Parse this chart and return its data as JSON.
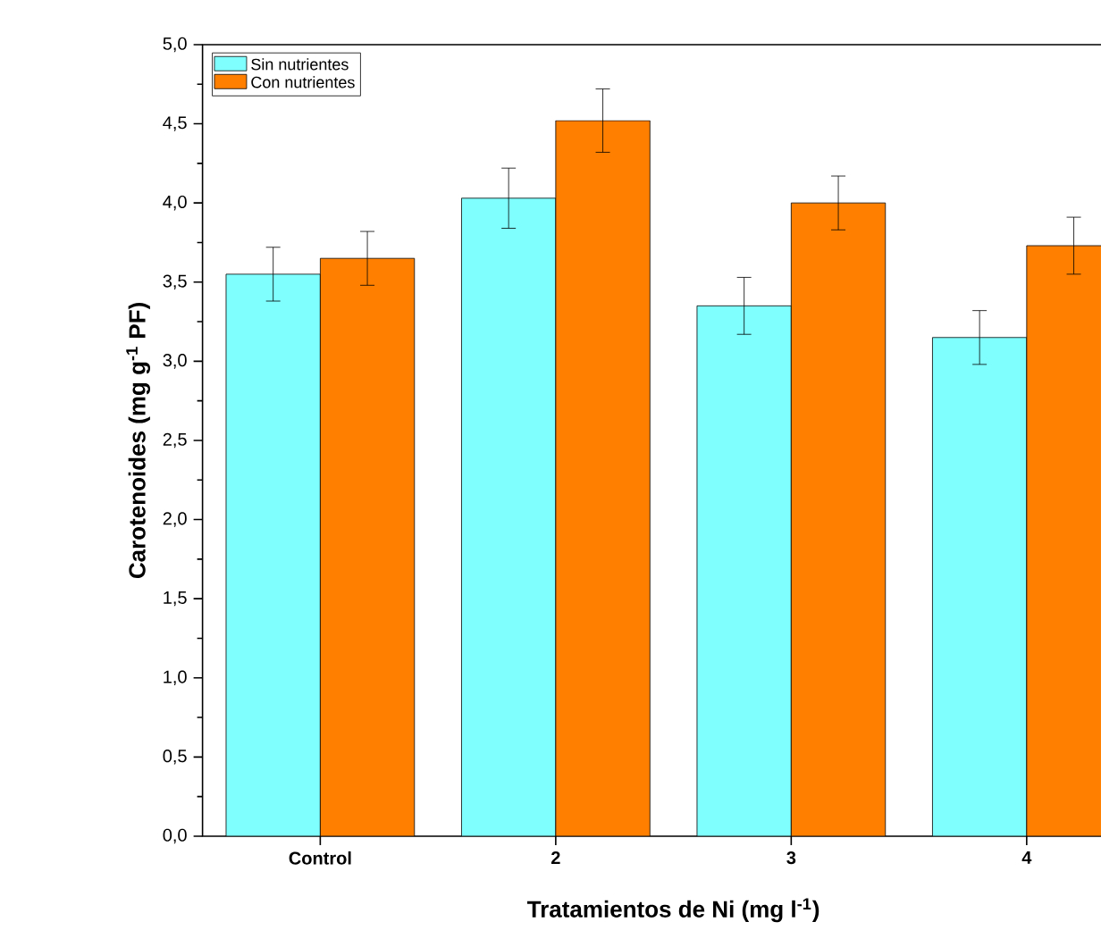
{
  "chart_data": {
    "type": "bar",
    "xlabel": "Tratamientos de Ni (mg l$^{-1}$)",
    "ylabel": "Carotenoides (mg g$^{-1}$ PF)",
    "categories": [
      "Control",
      "2",
      "3",
      "4"
    ],
    "series": [
      {
        "name": "Sin nutrientes",
        "color": "#80ffff",
        "values": [
          3.55,
          4.03,
          3.35,
          3.15
        ],
        "errors": [
          0.17,
          0.19,
          0.18,
          0.17
        ]
      },
      {
        "name": "Con nutrientes",
        "color": "#ff8000",
        "values": [
          3.65,
          4.52,
          4.0,
          3.73
        ],
        "errors": [
          0.17,
          0.2,
          0.17,
          0.18
        ]
      }
    ],
    "ylim": [
      0,
      5
    ],
    "yticks": [
      {
        "value": 0,
        "label": "0,0"
      },
      {
        "value": 0.5,
        "label": "0,5"
      },
      {
        "value": 1,
        "label": "1,0"
      },
      {
        "value": 1.5,
        "label": "1,5"
      },
      {
        "value": 2,
        "label": "2,0"
      },
      {
        "value": 2.5,
        "label": "2,5"
      },
      {
        "value": 3,
        "label": "3,0"
      },
      {
        "value": 3.5,
        "label": "3,5"
      },
      {
        "value": 4,
        "label": "4,0"
      },
      {
        "value": 4.5,
        "label": "4,5"
      },
      {
        "value": 5,
        "label": "5,0"
      }
    ],
    "grid": false,
    "legend": "top left"
  }
}
